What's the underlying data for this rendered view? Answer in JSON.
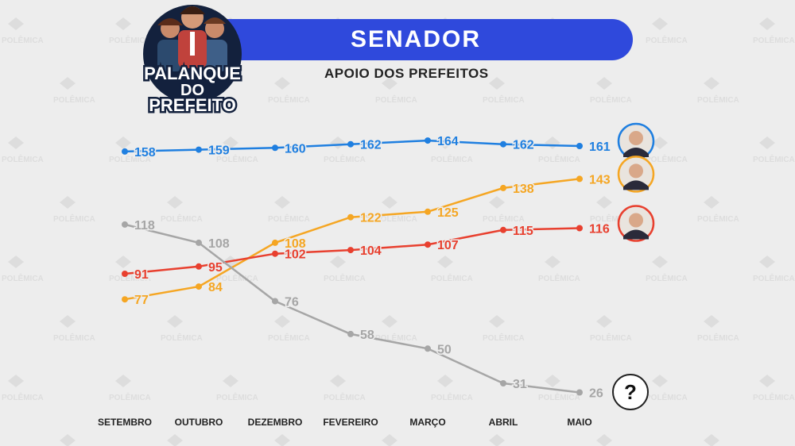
{
  "header": {
    "title": "SENADOR",
    "subtitle": "APOIO DOS PREFEITOS",
    "logo_lines": [
      "PALANQUE",
      "DO",
      "PREFEITO"
    ],
    "watermark": "POLÊMICA"
  },
  "colors": {
    "banner": "#2f49dc",
    "blue": "#1f7fe0",
    "orange": "#f5a623",
    "red": "#e8402f",
    "gray": "#a6a6a6"
  },
  "chart_data": {
    "type": "line",
    "x": [
      "SETEMBRO",
      "OUTUBRO",
      "DEZEMBRO",
      "FEVEREIRO",
      "MARÇO",
      "ABRIL",
      "MAIO"
    ],
    "series": [
      {
        "color": "#1f7fe0",
        "values": [
          158,
          159,
          160,
          162,
          164,
          162,
          161
        ],
        "end_marker": "photo"
      },
      {
        "color": "#f5a623",
        "values": [
          77,
          84,
          108,
          122,
          125,
          138,
          143
        ],
        "end_marker": "photo"
      },
      {
        "color": "#e8402f",
        "values": [
          91,
          95,
          102,
          104,
          107,
          115,
          116
        ],
        "end_marker": "photo"
      },
      {
        "color": "#a6a6a6",
        "values": [
          118,
          108,
          76,
          58,
          50,
          31,
          26
        ],
        "end_marker": "?"
      }
    ],
    "grid": false,
    "legend": "none"
  }
}
